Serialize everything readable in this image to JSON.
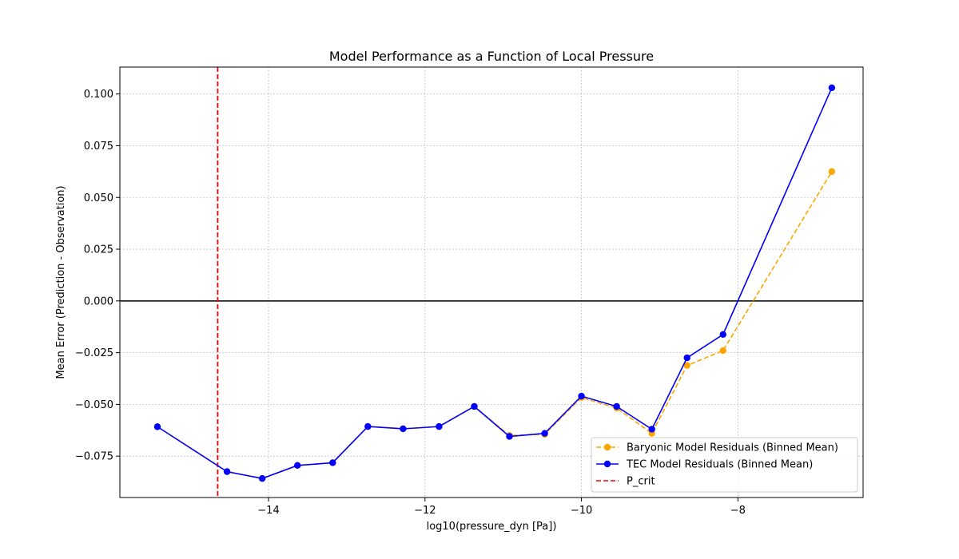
{
  "chart_data": {
    "type": "line",
    "title": "Model Performance as a Function of Local Pressure",
    "xlabel": "log10(pressure_dyn [Pa])",
    "ylabel": "Mean Error (Prediction - Observation)",
    "xlim": [
      -15.9,
      -6.4
    ],
    "ylim": [
      -0.095,
      0.113
    ],
    "xticks": [
      -14,
      -12,
      -10,
      -8
    ],
    "xtick_labels": [
      "−14",
      "−12",
      "−10",
      "−8"
    ],
    "yticks": [
      -0.075,
      -0.05,
      -0.025,
      0.0,
      0.025,
      0.05,
      0.075,
      0.1
    ],
    "ytick_labels": [
      "−0.075",
      "−0.050",
      "−0.025",
      "0.000",
      "0.025",
      "0.050",
      "0.075",
      "0.100"
    ],
    "grid": true,
    "legend_position": "lower-right",
    "hline_y": 0.0,
    "vline": {
      "name": "P_crit",
      "x": -14.65,
      "color": "#ff0000",
      "style": "dashed"
    },
    "series": [
      {
        "name": "Baryonic Model Residuals (Binned Mean)",
        "color": "#ffa500",
        "style": "dashed",
        "x": [
          -15.42,
          -14.53,
          -14.08,
          -13.63,
          -13.18,
          -12.73,
          -12.28,
          -11.82,
          -11.37,
          -10.92,
          -10.47,
          -10.0,
          -9.55,
          -9.1,
          -8.65,
          -8.19,
          -6.8
        ],
        "y": [
          -0.0608,
          -0.0825,
          -0.0858,
          -0.0795,
          -0.0782,
          -0.0607,
          -0.0618,
          -0.0607,
          -0.051,
          -0.065,
          -0.0645,
          -0.0467,
          -0.0518,
          -0.064,
          -0.0312,
          -0.024,
          0.0625
        ]
      },
      {
        "name": "TEC Model Residuals (Binned Mean)",
        "color": "#0000ff",
        "style": "solid",
        "x": [
          -15.42,
          -14.53,
          -14.08,
          -13.63,
          -13.18,
          -12.73,
          -12.28,
          -11.82,
          -11.37,
          -10.92,
          -10.47,
          -10.0,
          -9.55,
          -9.1,
          -8.65,
          -8.19,
          -6.8
        ],
        "y": [
          -0.0608,
          -0.0825,
          -0.0858,
          -0.0795,
          -0.0782,
          -0.0607,
          -0.0618,
          -0.0607,
          -0.051,
          -0.0655,
          -0.064,
          -0.046,
          -0.051,
          -0.062,
          -0.0275,
          -0.0162,
          0.103
        ]
      }
    ]
  }
}
